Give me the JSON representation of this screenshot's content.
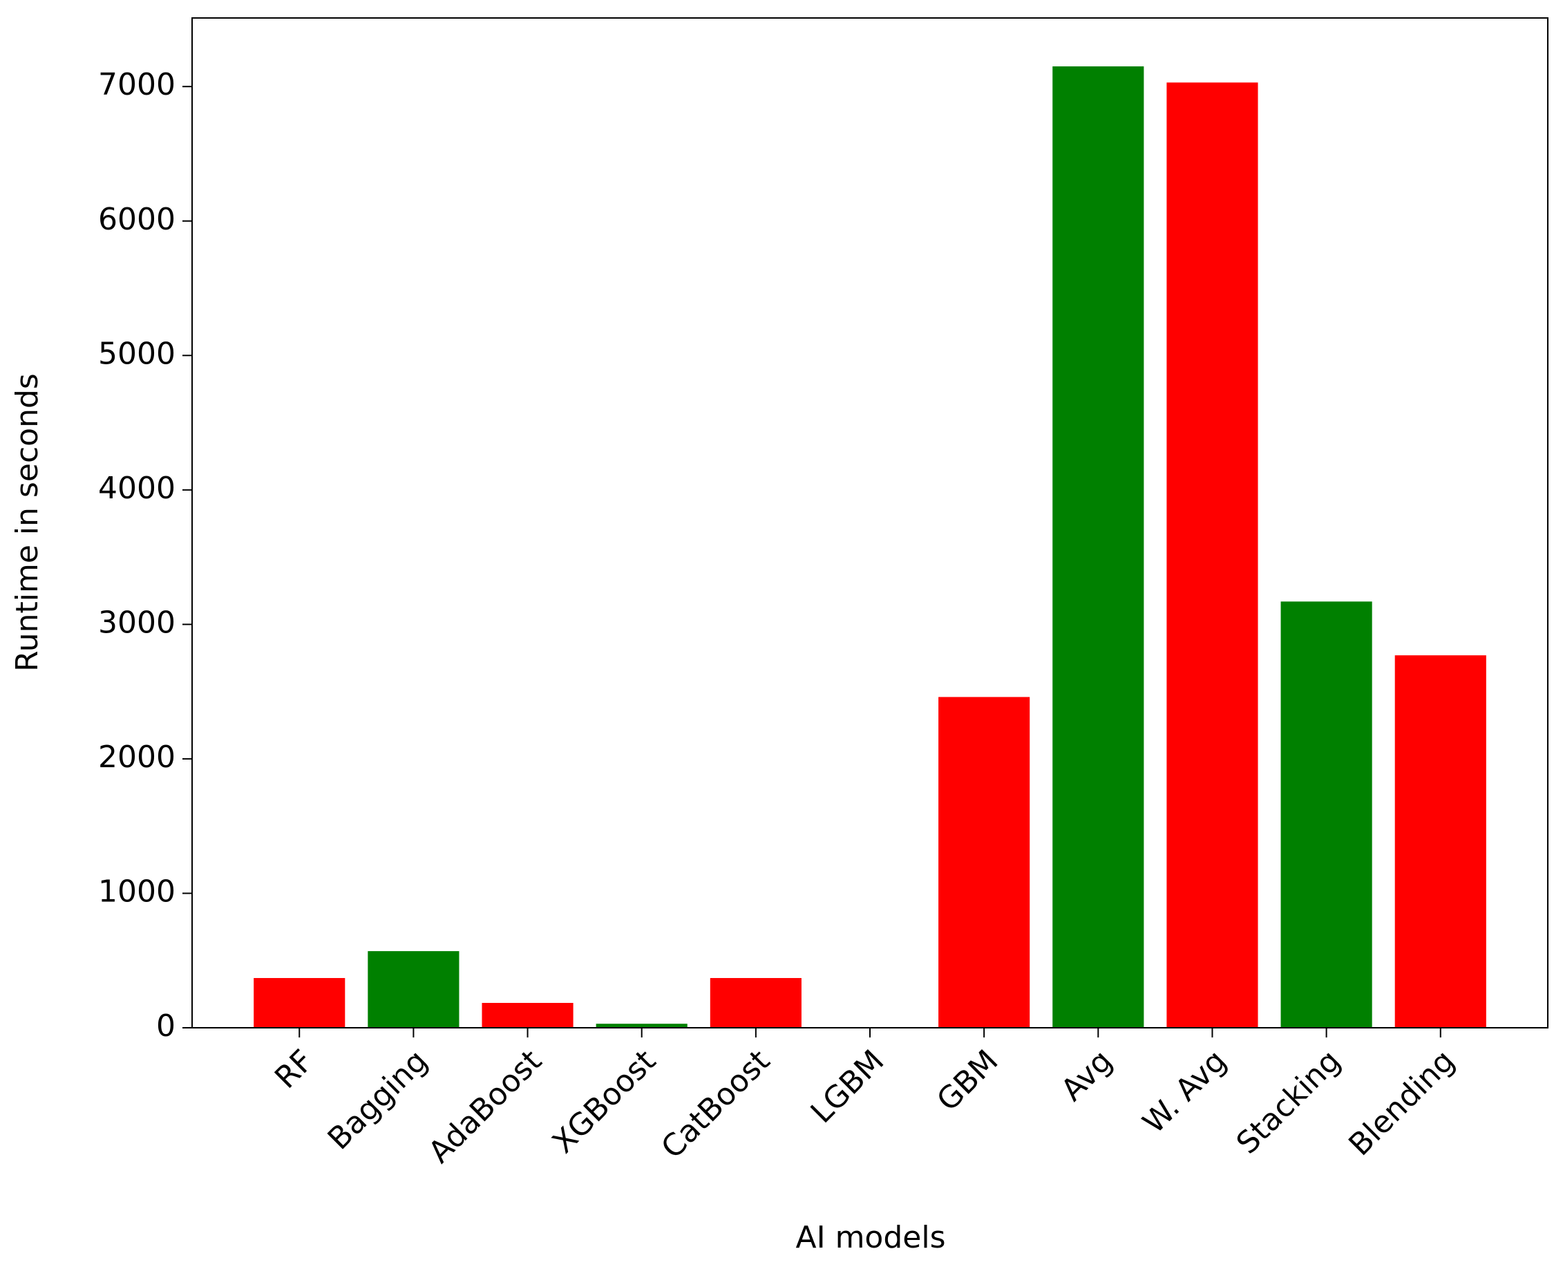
{
  "chart_data": {
    "type": "bar",
    "xlabel": "AI models",
    "ylabel": "Runtime in seconds",
    "categories": [
      "RF",
      "Bagging",
      "AdaBoost",
      "XGBoost",
      "CatBoost",
      "LGBM",
      "GBM",
      "Avg",
      "W. Avg",
      "Stacking",
      "Blending"
    ],
    "values": [
      370,
      570,
      185,
      30,
      370,
      0,
      2460,
      7150,
      7030,
      3170,
      2770
    ],
    "colors": [
      "#ff0000",
      "#008000",
      "#ff0000",
      "#008000",
      "#ff0000",
      "#008000",
      "#ff0000",
      "#008000",
      "#ff0000",
      "#008000",
      "#ff0000"
    ],
    "ylim": [
      0,
      7510
    ],
    "yticks": [
      0,
      1000,
      2000,
      3000,
      4000,
      5000,
      6000,
      7000
    ],
    "grid": false
  }
}
